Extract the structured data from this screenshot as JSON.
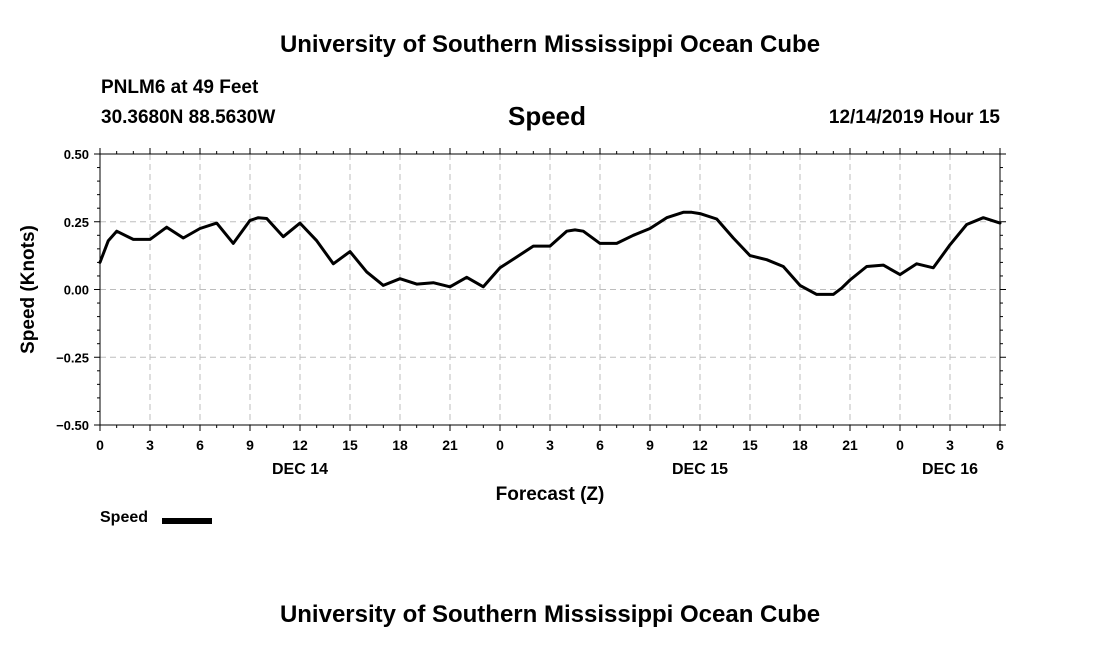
{
  "header": {
    "title": "University of Southern Mississippi Ocean Cube",
    "station": "PNLM6 at 49 Feet",
    "coords": "30.3680N 88.5630W",
    "variable": "Speed",
    "timestamp": "12/14/2019 Hour 15"
  },
  "footer": {
    "title": "University of Southern Mississippi Ocean Cube"
  },
  "legend": {
    "label": "Speed",
    "color": "#000000"
  },
  "chart_data": {
    "type": "line",
    "title": "Speed",
    "xlabel": "Forecast (Z)",
    "ylabel": "Speed (Knots)",
    "xlim": [
      0,
      54
    ],
    "ylim": [
      -0.5,
      0.5
    ],
    "yticks": [
      0.5,
      0.25,
      0.0,
      -0.25,
      -0.5
    ],
    "ytick_labels": [
      "0.50",
      "0.25",
      "0.00",
      "−0.25",
      "−0.50"
    ],
    "xticks": [
      0,
      3,
      6,
      9,
      12,
      15,
      18,
      21,
      24,
      27,
      30,
      33,
      36,
      39,
      42,
      45,
      48,
      51,
      54
    ],
    "xtick_labels": [
      "0",
      "3",
      "6",
      "9",
      "12",
      "15",
      "18",
      "21",
      "0",
      "3",
      "6",
      "9",
      "12",
      "15",
      "18",
      "21",
      "0",
      "3",
      "6"
    ],
    "date_labels": [
      {
        "x": 12,
        "label": "DEC 14"
      },
      {
        "x": 36,
        "label": "DEC 15"
      },
      {
        "x": 51,
        "label": "DEC 16"
      }
    ],
    "grid": true,
    "series": [
      {
        "name": "Speed",
        "color": "#000000",
        "x": [
          0,
          0.5,
          1,
          2,
          3,
          4,
          5,
          6,
          7,
          8,
          9,
          9.5,
          10,
          11,
          12,
          13,
          14,
          15,
          16,
          17,
          18,
          19,
          20,
          21,
          22,
          23,
          24,
          25,
          26,
          27,
          28,
          28.5,
          29,
          30,
          31,
          32,
          33,
          34,
          35,
          35.5,
          36,
          37,
          38,
          39,
          40,
          41,
          42,
          43,
          44,
          44.5,
          45,
          46,
          47,
          48,
          49,
          50,
          51,
          52,
          53,
          54
        ],
        "values": [
          0.1,
          0.18,
          0.215,
          0.185,
          0.185,
          0.23,
          0.19,
          0.225,
          0.245,
          0.17,
          0.255,
          0.265,
          0.262,
          0.195,
          0.245,
          0.18,
          0.095,
          0.14,
          0.065,
          0.015,
          0.04,
          0.02,
          0.025,
          0.01,
          0.045,
          0.01,
          0.08,
          0.12,
          0.16,
          0.16,
          0.215,
          0.22,
          0.215,
          0.17,
          0.17,
          0.2,
          0.225,
          0.265,
          0.285,
          0.285,
          0.28,
          0.26,
          0.19,
          0.125,
          0.11,
          0.085,
          0.015,
          -0.018,
          -0.018,
          0.005,
          0.035,
          0.085,
          0.09,
          0.055,
          0.095,
          0.08,
          0.165,
          0.24,
          0.265,
          0.245
        ]
      }
    ]
  }
}
